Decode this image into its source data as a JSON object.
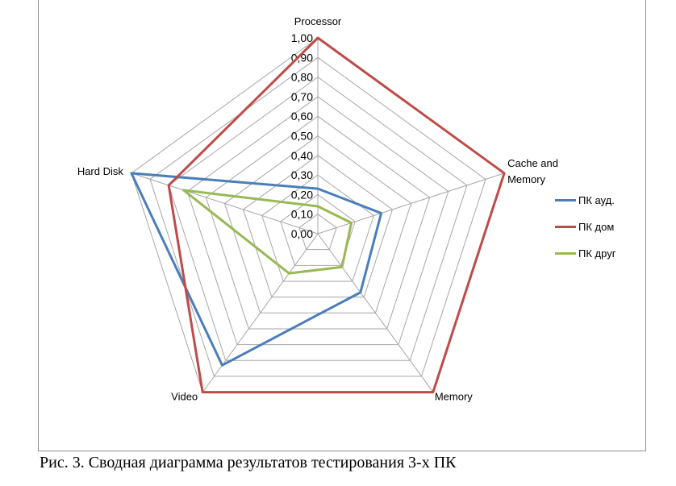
{
  "chart_data": {
    "type": "radar",
    "categories": [
      "Processor",
      "Cache and Memory",
      "Memory",
      "Video",
      "Hard Disk"
    ],
    "category_label_lines": [
      [
        "Processor"
      ],
      [
        "Cache and",
        "Memory"
      ],
      [
        "Memory"
      ],
      [
        "Video"
      ],
      [
        "Hard Disk"
      ]
    ],
    "rlim": [
      0,
      1
    ],
    "ticks": [
      0,
      0.1,
      0.2,
      0.3,
      0.4,
      0.5,
      0.6,
      0.7,
      0.8,
      0.9,
      1.0
    ],
    "tick_labels": [
      "0,00",
      "0,10",
      "0,20",
      "0,30",
      "0,40",
      "0,50",
      "0,60",
      "0,70",
      "0,80",
      "0,90",
      "1,00"
    ],
    "grid": true,
    "legend_position": "right",
    "series": [
      {
        "name": "ПК ауд.",
        "color": "#4a7ebb",
        "values": [
          0.23,
          0.34,
          0.37,
          0.83,
          1.0
        ]
      },
      {
        "name": "ПК дом",
        "color": "#be4b48",
        "values": [
          1.0,
          1.0,
          1.0,
          1.0,
          0.8
        ]
      },
      {
        "name": "ПК друг",
        "color": "#98b954",
        "values": [
          0.14,
          0.18,
          0.21,
          0.25,
          0.72
        ]
      }
    ]
  },
  "caption": "Рис. 3. Сводная диаграмма результатов тестирования 3-х ПК"
}
